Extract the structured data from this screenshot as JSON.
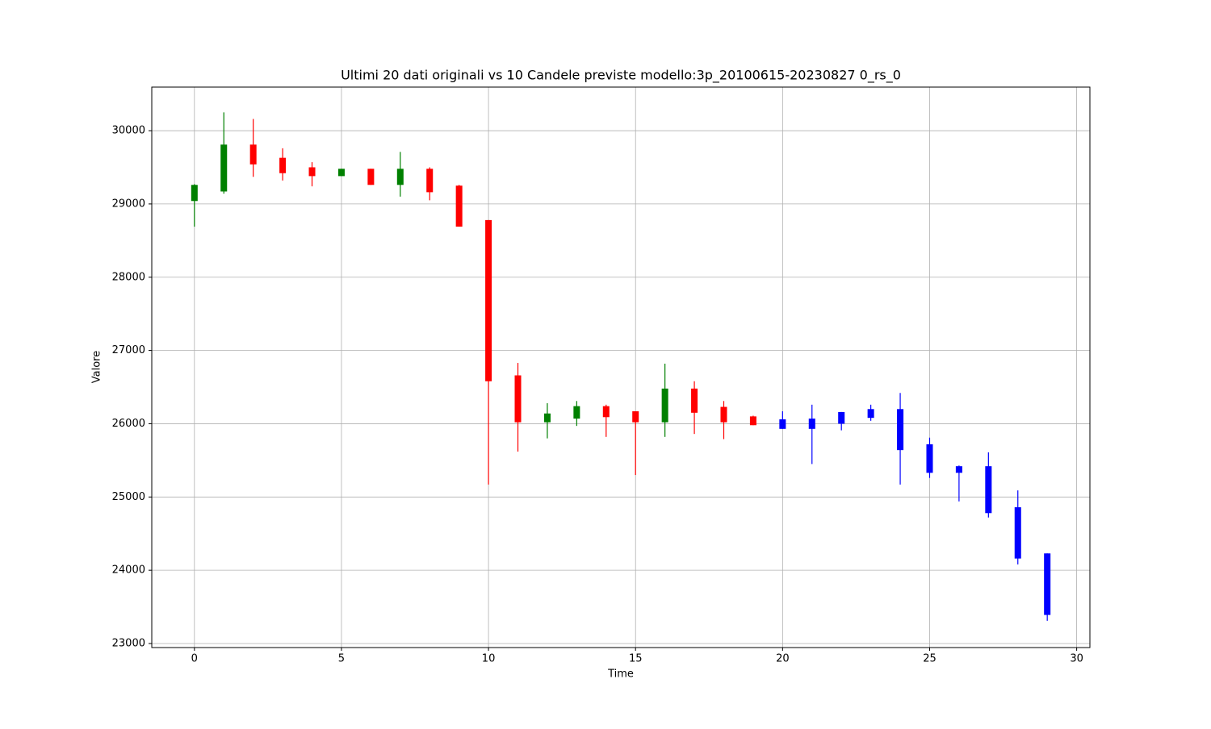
{
  "chart_data": {
    "type": "candlestick",
    "title": "Ultimi 20 dati originali vs 10 Candele previste modello:3p_20100615-20230827 0_rs_0",
    "x_label": "Time",
    "y_label": "Valore",
    "x": [
      0,
      1,
      2,
      3,
      4,
      5,
      6,
      7,
      8,
      9,
      10,
      11,
      12,
      13,
      14,
      15,
      16,
      17,
      18,
      19,
      20,
      21,
      22,
      23,
      24,
      25,
      26,
      27,
      28,
      29
    ],
    "open": [
      29040,
      29170,
      29810,
      29630,
      29500,
      29380,
      29480,
      29260,
      29480,
      29250,
      28780,
      26660,
      26020,
      26070,
      26240,
      26170,
      26020,
      26480,
      26230,
      26100,
      25930,
      26070,
      26160,
      26200,
      26200,
      25720,
      25420,
      25420,
      24860,
      24230
    ],
    "high": [
      29270,
      30250,
      30160,
      29760,
      29570,
      29480,
      29480,
      29710,
      29500,
      29260,
      28780,
      26830,
      26280,
      26310,
      26260,
      26170,
      26820,
      26580,
      26310,
      26110,
      26170,
      26260,
      26160,
      26260,
      26420,
      25810,
      25430,
      25610,
      25090,
      24230
    ],
    "low": [
      28690,
      29140,
      29370,
      29320,
      29240,
      29380,
      29260,
      29100,
      29050,
      28690,
      25170,
      25620,
      25800,
      25970,
      25820,
      25300,
      25820,
      25860,
      25790,
      25980,
      25930,
      25450,
      25910,
      26040,
      25170,
      25260,
      24940,
      24720,
      24080,
      23310
    ],
    "close": [
      29260,
      29810,
      29540,
      29420,
      29380,
      29480,
      29260,
      29480,
      29160,
      28690,
      26580,
      26020,
      26140,
      26240,
      26090,
      26020,
      26480,
      26150,
      26020,
      25980,
      26060,
      25930,
      26000,
      26080,
      25640,
      25330,
      25330,
      24780,
      24160,
      23390
    ],
    "colors": [
      "#008000",
      "#008000",
      "#ff0000",
      "#ff0000",
      "#ff0000",
      "#008000",
      "#ff0000",
      "#008000",
      "#ff0000",
      "#ff0000",
      "#ff0000",
      "#ff0000",
      "#008000",
      "#008000",
      "#ff0000",
      "#ff0000",
      "#008000",
      "#ff0000",
      "#ff0000",
      "#ff0000",
      "#0000ff",
      "#0000ff",
      "#0000ff",
      "#0000ff",
      "#0000ff",
      "#0000ff",
      "#0000ff",
      "#0000ff",
      "#0000ff",
      "#0000ff"
    ],
    "xlim": [
      -1.45,
      30.45
    ],
    "ylim": [
      22945,
      30595
    ],
    "xticks": [
      0,
      5,
      10,
      15,
      20,
      25,
      30
    ],
    "yticks": [
      23000,
      24000,
      25000,
      26000,
      27000,
      28000,
      29000,
      30000
    ],
    "grid": true
  }
}
